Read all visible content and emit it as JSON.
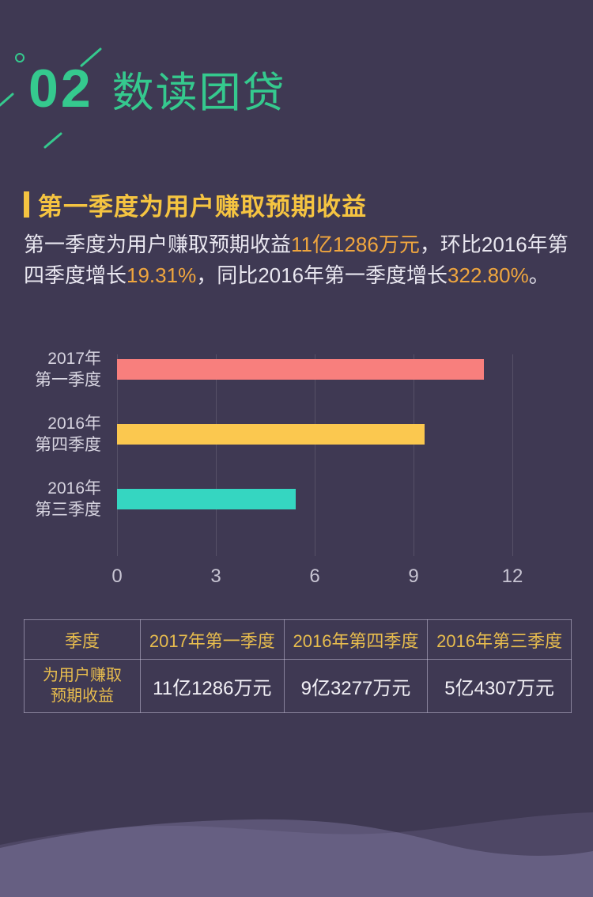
{
  "page": {
    "background": "#3f3953",
    "accent_green": "#35c98e",
    "accent_yellow": "#f5c441",
    "highlight_orange": "#f0a63e"
  },
  "header": {
    "section_number": "02",
    "section_title": "数读团贷"
  },
  "article": {
    "heading": "第一季度为用户赚取预期收益",
    "paragraph_parts": [
      {
        "text": "第一季度为用户赚取预期收益",
        "highlight": false
      },
      {
        "text": "11亿1286万元",
        "highlight": true
      },
      {
        "text": "，环比2016年第四季度增长",
        "highlight": false
      },
      {
        "text": "19.31%",
        "highlight": true
      },
      {
        "text": "，同比2016年第一季度增长",
        "highlight": false
      },
      {
        "text": "322.80%",
        "highlight": true
      },
      {
        "text": "。",
        "highlight": false
      }
    ]
  },
  "chart_data": {
    "type": "bar",
    "orientation": "horizontal",
    "title": "",
    "categories": [
      "2017年第一季度",
      "2016年第四季度",
      "2016年第三季度"
    ],
    "category_label_lines": [
      [
        "2017年",
        "第一季度"
      ],
      [
        "2016年",
        "第四季度"
      ],
      [
        "2016年",
        "第三季度"
      ]
    ],
    "values": [
      11.1286,
      9.3277,
      5.4307
    ],
    "unit": "亿元",
    "bar_colors": [
      "#f87f7d",
      "#fbc84f",
      "#35d6c1"
    ],
    "xlim": [
      0,
      12
    ],
    "x_ticks": [
      0,
      3,
      6,
      9,
      12
    ],
    "grid": true,
    "legend": false
  },
  "table": {
    "headers": [
      "季度",
      "2017年第一季度",
      "2016年第四季度",
      "2016年第三季度"
    ],
    "rows": [
      {
        "label_lines": [
          "为用户赚取",
          "预期收益"
        ],
        "values": [
          "11亿1286万元",
          "9亿3277万元",
          "5亿4307万元"
        ]
      }
    ]
  }
}
